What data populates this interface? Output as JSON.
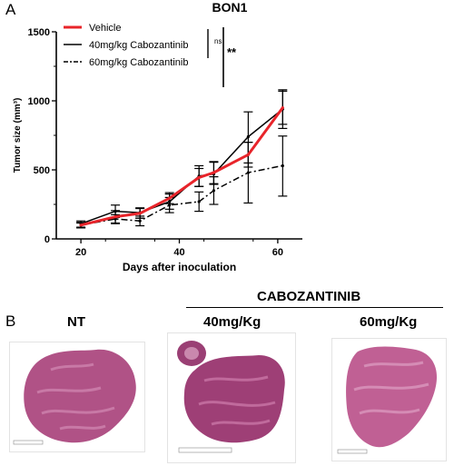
{
  "panel_a": {
    "letter": "A"
  },
  "panel_b": {
    "letter": "B",
    "labels": {
      "nt": "NT",
      "group": "CABOZANTINIB",
      "dose40": "40mg/Kg",
      "dose60": "60mg/Kg"
    }
  },
  "significance": {
    "ns": "ns",
    "stars": "**"
  },
  "colors": {
    "vehicle": "#e8242a",
    "dose40": "#000000",
    "dose60": "#000000",
    "tissue": "#b04a80"
  },
  "chart_data": {
    "type": "line",
    "title": "BON1",
    "xlabel": "Days after inoculation",
    "ylabel": "Tumor size (mm³)",
    "xlim": [
      15,
      65
    ],
    "ylim": [
      0,
      1500
    ],
    "xticks": [
      20,
      40,
      60
    ],
    "yticks": [
      0,
      500,
      1000,
      1500
    ],
    "legend_position": "top-left",
    "series": [
      {
        "name": "Vehicle",
        "style": "solid-thick-red",
        "points": [
          {
            "x": 20,
            "y": 100,
            "lo": 85,
            "hi": 115
          },
          {
            "x": 27,
            "y": 160,
            "lo": 115,
            "hi": 205
          },
          {
            "x": 32,
            "y": 185,
            "lo": 150,
            "hi": 220
          },
          {
            "x": 38,
            "y": 295,
            "lo": 255,
            "hi": 335
          },
          {
            "x": 44,
            "y": 445,
            "lo": 380,
            "hi": 510
          },
          {
            "x": 47,
            "y": 480,
            "lo": 400,
            "hi": 560
          },
          {
            "x": 54,
            "y": 610,
            "lo": 520,
            "hi": 700
          },
          {
            "x": 61,
            "y": 950,
            "lo": 830,
            "hi": 1070
          }
        ]
      },
      {
        "name": "40mg/kg Cabozantinib",
        "style": "solid-black",
        "points": [
          {
            "x": 20,
            "y": 110,
            "lo": 80,
            "hi": 130
          },
          {
            "x": 27,
            "y": 200,
            "lo": 155,
            "hi": 245
          },
          {
            "x": 32,
            "y": 190,
            "lo": 150,
            "hi": 225
          },
          {
            "x": 38,
            "y": 270,
            "lo": 215,
            "hi": 325
          },
          {
            "x": 44,
            "y": 455,
            "lo": 380,
            "hi": 530
          },
          {
            "x": 47,
            "y": 470,
            "lo": 395,
            "hi": 555
          },
          {
            "x": 54,
            "y": 740,
            "lo": 550,
            "hi": 920
          },
          {
            "x": 61,
            "y": 940,
            "lo": 800,
            "hi": 1080
          }
        ]
      },
      {
        "name": "60mg/kg Cabozantinib",
        "style": "dash-dot-black",
        "points": [
          {
            "x": 20,
            "y": 100,
            "lo": 80,
            "hi": 120
          },
          {
            "x": 27,
            "y": 145,
            "lo": 110,
            "hi": 175
          },
          {
            "x": 32,
            "y": 130,
            "lo": 95,
            "hi": 165
          },
          {
            "x": 38,
            "y": 245,
            "lo": 190,
            "hi": 300
          },
          {
            "x": 44,
            "y": 270,
            "lo": 200,
            "hi": 340
          },
          {
            "x": 47,
            "y": 350,
            "lo": 250,
            "hi": 450
          },
          {
            "x": 54,
            "y": 480,
            "lo": 260,
            "hi": 700
          },
          {
            "x": 61,
            "y": 530,
            "lo": 310,
            "hi": 745
          }
        ]
      }
    ]
  }
}
